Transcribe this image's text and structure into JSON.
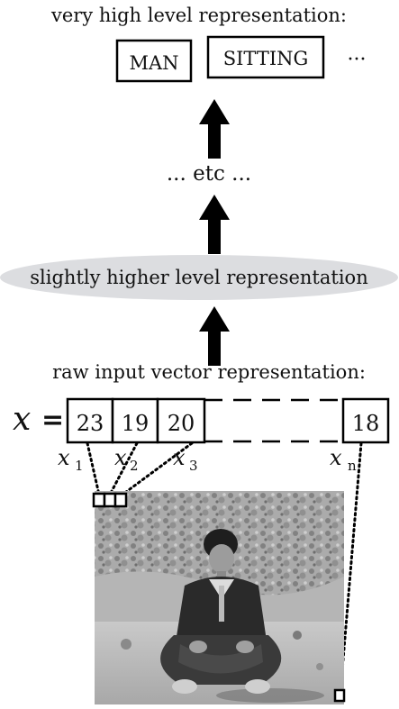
{
  "top": {
    "title": "very high level representation:",
    "concepts": [
      "MAN",
      "SITTING"
    ],
    "more": "···"
  },
  "middle": {
    "etc": "... etc ..."
  },
  "intermediate": {
    "label": "slightly higher level representation"
  },
  "raw": {
    "title": "raw input vector representation:",
    "vector_symbol": "𝑥",
    "equals": "=",
    "values": [
      "23",
      "19",
      "20"
    ],
    "last_value": "18",
    "subscript_labels": [
      {
        "base": "x",
        "sub": "1"
      },
      {
        "base": "x",
        "sub": "2"
      },
      {
        "base": "x",
        "sub": "3"
      },
      {
        "base": "x",
        "sub": "n"
      }
    ]
  },
  "photo": {
    "kind": "grayscale photograph of a man sitting cross-legged on rocky ground"
  }
}
